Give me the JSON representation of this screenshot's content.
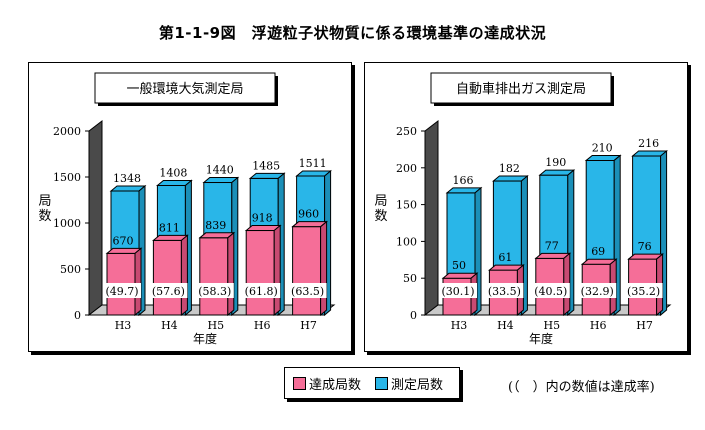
{
  "title": "第1-1-9図　浮遊粒子状物質に係る環境基準の達成状況",
  "legend": {
    "achieved": "達成局数",
    "measured": "測定局数",
    "note": "(（　）内の数値は達成率)"
  },
  "colors": {
    "measured": "#29b6e8",
    "achieved": "#f56e98",
    "depth_side": "#555555",
    "depth_top": "#cccccc"
  },
  "chart_data": [
    {
      "type": "bar",
      "title": "一般環境大気測定局",
      "categories": [
        "H3",
        "H4",
        "H5",
        "H6",
        "H7"
      ],
      "xlabel": "年度",
      "ylabel": "局数",
      "ylim": [
        0,
        2000
      ],
      "yticks": [
        0,
        500,
        1000,
        1500,
        2000
      ],
      "series": [
        {
          "name": "測定局数",
          "values": [
            1348,
            1408,
            1440,
            1485,
            1511
          ]
        },
        {
          "name": "達成局数",
          "values": [
            670,
            811,
            839,
            918,
            960
          ]
        }
      ],
      "rates": [
        "(49.7)",
        "(57.6)",
        "(58.3)",
        "(61.8)",
        "(63.5)"
      ]
    },
    {
      "type": "bar",
      "title": "自動車排出ガス測定局",
      "categories": [
        "H3",
        "H4",
        "H5",
        "H6",
        "H7"
      ],
      "xlabel": "年度",
      "ylabel": "局数",
      "ylim": [
        0,
        250
      ],
      "yticks": [
        0,
        50,
        100,
        150,
        200,
        250
      ],
      "series": [
        {
          "name": "測定局数",
          "values": [
            166,
            182,
            190,
            210,
            216
          ]
        },
        {
          "name": "達成局数",
          "values": [
            50,
            61,
            77,
            69,
            76
          ]
        }
      ],
      "rates": [
        "(30.1)",
        "(33.5)",
        "(40.5)",
        "(32.9)",
        "(35.2)"
      ]
    }
  ]
}
